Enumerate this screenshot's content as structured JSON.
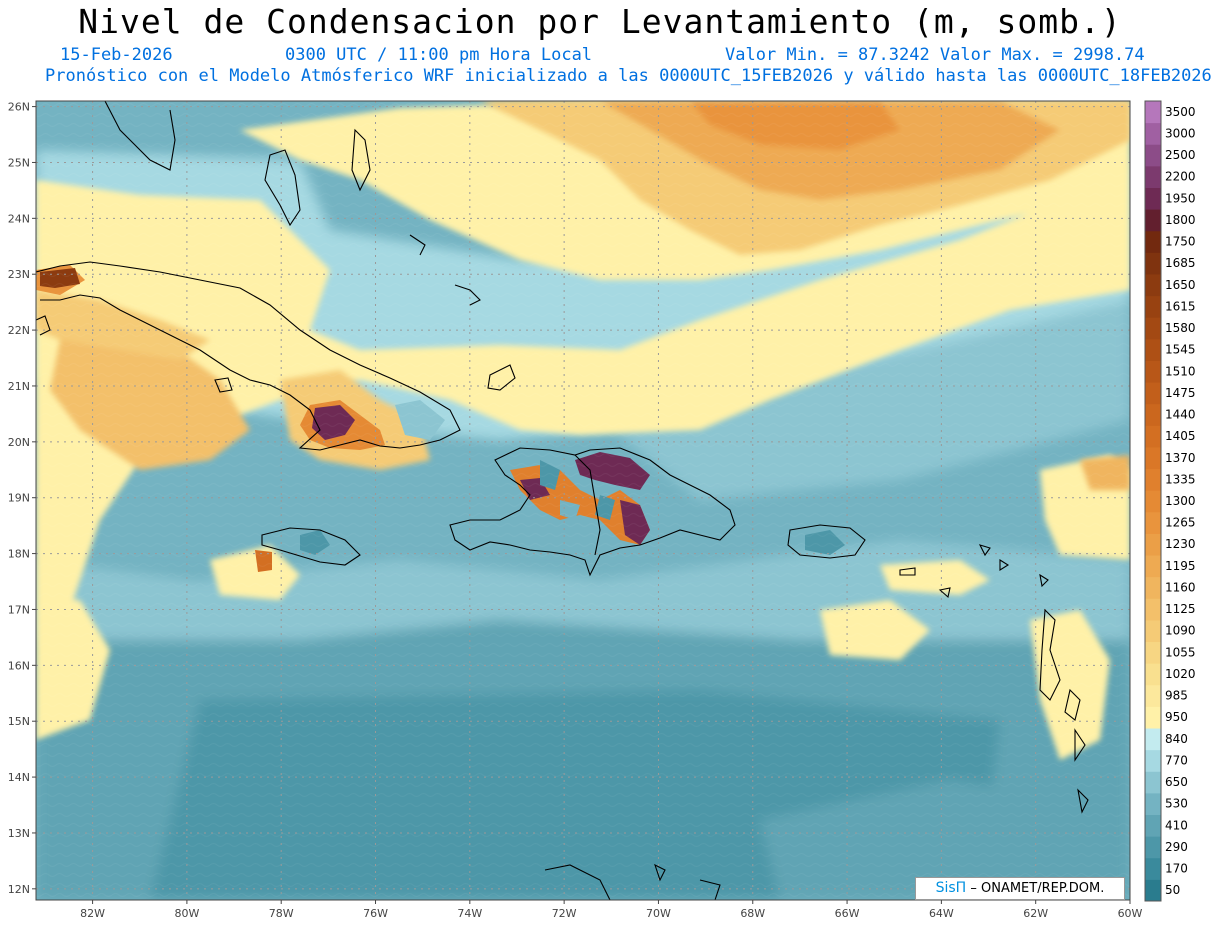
{
  "header": {
    "title": "Nivel de Condensacion por Levantamiento (m, somb.)",
    "date": "15-Feb-2026",
    "time": "0300 UTC / 11:00 pm Hora Local",
    "minmax": "Valor Min. = 87.3242  Valor Max. = 2998.74",
    "model": "Pronóstico con el Modelo Atmósferico WRF inicializado a las 0000UTC_15FEB2026 y válido hasta las  0000UTC_18FEB2026"
  },
  "map": {
    "lon_range": [
      -83.2,
      -60.0
    ],
    "lat_range": [
      11.8,
      26.1
    ],
    "lat_labels": [
      "12N",
      "13N",
      "14N",
      "15N",
      "16N",
      "17N",
      "18N",
      "19N",
      "20N",
      "21N",
      "22N",
      "23N",
      "24N",
      "25N",
      "26N"
    ],
    "lon_labels": [
      "82W",
      "80W",
      "78W",
      "76W",
      "74W",
      "72W",
      "70W",
      "68W",
      "66W",
      "64W",
      "62W",
      "60W"
    ]
  },
  "colorbar": {
    "levels": [
      "50",
      "170",
      "290",
      "410",
      "530",
      "650",
      "770",
      "840",
      "950",
      "985",
      "1020",
      "1055",
      "1090",
      "1125",
      "1160",
      "1195",
      "1230",
      "1265",
      "1300",
      "1335",
      "1370",
      "1405",
      "1440",
      "1475",
      "1510",
      "1545",
      "1580",
      "1615",
      "1650",
      "1685",
      "1750",
      "1800",
      "1950",
      "2200",
      "2500",
      "3000",
      "3500"
    ],
    "colors": [
      "#2a7c8e",
      "#3a8a9c",
      "#4d97a8",
      "#60a4b4",
      "#74b3c2",
      "#8cc5d1",
      "#a6d9e2",
      "#c3ebef",
      "#fff1a8",
      "#fce89c",
      "#f9e08f",
      "#f7d683",
      "#f5cb76",
      "#f3c06a",
      "#f0b55e",
      "#eeaa52",
      "#eb9f47",
      "#e9943d",
      "#e58a34",
      "#e0802d",
      "#da7727",
      "#d36f22",
      "#cb671e",
      "#c25f1b",
      "#b85718",
      "#ae5015",
      "#a34913",
      "#984211",
      "#8c3b10",
      "#7f330f",
      "#72290f",
      "#621f2e",
      "#6e2a54",
      "#7c3a6e",
      "#8c4c88",
      "#a060a2",
      "#b577bb"
    ]
  },
  "credit": {
    "brand": "SisΠ",
    "rest": "– ONAMET/REP.DOM."
  }
}
